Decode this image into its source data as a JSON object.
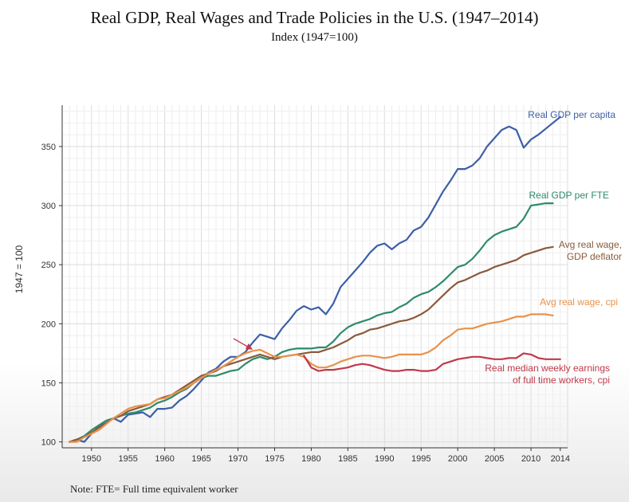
{
  "note": "Note: FTE= Full time equivalent worker",
  "chart_data": {
    "type": "line",
    "title": "Real GDP, Real Wages and Trade Policies in the U.S. (1947–2014)",
    "subtitle": "Index (1947=100)",
    "xlabel": "",
    "ylabel": "1947 = 100",
    "xlim": [
      1946,
      2015
    ],
    "ylim": [
      95,
      385
    ],
    "x_ticks": [
      1950,
      1955,
      1960,
      1965,
      1970,
      1975,
      1980,
      1985,
      1990,
      1995,
      2000,
      2005,
      2010,
      2014
    ],
    "y_ticks": [
      100,
      150,
      200,
      250,
      300,
      350
    ],
    "grid": true,
    "annotation": {
      "type": "arrow",
      "points_to": [
        1972,
        178
      ]
    },
    "series": [
      {
        "name": "Real GDP per capita",
        "label_lines": [
          "Real GDP per capita"
        ],
        "color": "#3d5fa8",
        "x": [
          1947,
          1948,
          1949,
          1950,
          1951,
          1952,
          1953,
          1954,
          1955,
          1956,
          1957,
          1958,
          1959,
          1960,
          1961,
          1962,
          1963,
          1964,
          1965,
          1966,
          1967,
          1968,
          1969,
          1970,
          1971,
          1972,
          1973,
          1974,
          1975,
          1976,
          1977,
          1978,
          1979,
          1980,
          1981,
          1982,
          1983,
          1984,
          1985,
          1986,
          1987,
          1988,
          1989,
          1990,
          1991,
          1992,
          1993,
          1994,
          1995,
          1996,
          1997,
          1998,
          1999,
          2000,
          2001,
          2002,
          2003,
          2004,
          2005,
          2006,
          2007,
          2008,
          2009,
          2010,
          2011,
          2012,
          2013,
          2014
        ],
        "y": [
          100,
          102,
          100,
          107,
          113,
          116,
          120,
          117,
          123,
          124,
          125,
          121,
          128,
          128,
          129,
          135,
          139,
          145,
          152,
          159,
          162,
          168,
          172,
          172,
          176,
          184,
          191,
          189,
          187,
          196,
          203,
          211,
          215,
          212,
          214,
          208,
          217,
          231,
          238,
          245,
          252,
          260,
          266,
          268,
          263,
          268,
          271,
          279,
          282,
          290,
          301,
          312,
          321,
          331,
          331,
          334,
          340,
          350,
          357,
          364,
          367,
          364,
          349,
          356,
          360,
          365,
          370,
          375
        ]
      },
      {
        "name": "Real GDP per FTE",
        "label_lines": [
          "Real GDP per FTE"
        ],
        "color": "#2e8b6a",
        "x": [
          1947,
          1948,
          1949,
          1950,
          1951,
          1952,
          1953,
          1954,
          1955,
          1956,
          1957,
          1958,
          1959,
          1960,
          1961,
          1962,
          1963,
          1964,
          1965,
          1966,
          1967,
          1968,
          1969,
          1970,
          1971,
          1972,
          1973,
          1974,
          1975,
          1976,
          1977,
          1978,
          1979,
          1980,
          1981,
          1982,
          1983,
          1984,
          1985,
          1986,
          1987,
          1988,
          1989,
          1990,
          1991,
          1992,
          1993,
          1994,
          1995,
          1996,
          1997,
          1998,
          1999,
          2000,
          2001,
          2002,
          2003,
          2004,
          2005,
          2006,
          2007,
          2008,
          2009,
          2010,
          2011,
          2012,
          2013
        ],
        "y": [
          100,
          102,
          105,
          110,
          114,
          118,
          120,
          122,
          124,
          125,
          127,
          129,
          133,
          135,
          138,
          142,
          145,
          150,
          154,
          156,
          156,
          158,
          160,
          161,
          166,
          170,
          172,
          170,
          172,
          176,
          178,
          179,
          179,
          179,
          180,
          180,
          185,
          192,
          197,
          200,
          202,
          204,
          207,
          209,
          210,
          214,
          217,
          222,
          225,
          227,
          231,
          236,
          242,
          248,
          250,
          255,
          262,
          270,
          275,
          278,
          280,
          282,
          289,
          300,
          301,
          302,
          302
        ]
      },
      {
        "name": "Avg real wage, GDP deflator",
        "label_lines": [
          "Avg real wage,",
          "GDP deflator"
        ],
        "color": "#8b5a3c",
        "x": [
          1947,
          1948,
          1949,
          1950,
          1951,
          1952,
          1953,
          1954,
          1955,
          1956,
          1957,
          1958,
          1959,
          1960,
          1961,
          1962,
          1963,
          1964,
          1965,
          1966,
          1967,
          1968,
          1969,
          1970,
          1971,
          1972,
          1973,
          1974,
          1975,
          1976,
          1977,
          1978,
          1979,
          1980,
          1981,
          1982,
          1983,
          1984,
          1985,
          1986,
          1987,
          1988,
          1989,
          1990,
          1991,
          1992,
          1993,
          1994,
          1995,
          1996,
          1997,
          1998,
          1999,
          2000,
          2001,
          2002,
          2003,
          2004,
          2005,
          2006,
          2007,
          2008,
          2009,
          2010,
          2011,
          2012,
          2013
        ],
        "y": [
          100,
          102,
          104,
          108,
          112,
          116,
          120,
          122,
          126,
          128,
          130,
          132,
          136,
          138,
          140,
          144,
          148,
          152,
          156,
          158,
          160,
          164,
          166,
          168,
          170,
          172,
          174,
          172,
          170,
          172,
          173,
          174,
          175,
          176,
          176,
          178,
          180,
          183,
          186,
          190,
          192,
          195,
          196,
          198,
          200,
          202,
          203,
          205,
          208,
          212,
          218,
          224,
          230,
          235,
          237,
          240,
          243,
          245,
          248,
          250,
          252,
          254,
          258,
          260,
          262,
          264,
          265
        ]
      },
      {
        "name": "Avg real wage, cpi",
        "label_lines": [
          "Avg real wage, cpi"
        ],
        "color": "#e8924a",
        "x": [
          1947,
          1948,
          1949,
          1950,
          1951,
          1952,
          1953,
          1954,
          1955,
          1956,
          1957,
          1958,
          1959,
          1960,
          1961,
          1962,
          1963,
          1964,
          1965,
          1966,
          1967,
          1968,
          1969,
          1970,
          1971,
          1972,
          1973,
          1974,
          1975,
          1976,
          1977,
          1978,
          1979,
          1980,
          1981,
          1982,
          1983,
          1984,
          1985,
          1986,
          1987,
          1988,
          1989,
          1990,
          1991,
          1992,
          1993,
          1994,
          1995,
          1996,
          1997,
          1998,
          1999,
          2000,
          2001,
          2002,
          2003,
          2004,
          2005,
          2006,
          2007,
          2008,
          2009,
          2010,
          2011,
          2012,
          2013
        ],
        "y": [
          100,
          100,
          104,
          107,
          110,
          115,
          120,
          124,
          128,
          130,
          131,
          132,
          136,
          137,
          140,
          143,
          146,
          150,
          154,
          158,
          161,
          164,
          168,
          172,
          175,
          177,
          178,
          175,
          172,
          172,
          173,
          174,
          172,
          166,
          163,
          163,
          165,
          168,
          170,
          172,
          173,
          173,
          172,
          171,
          172,
          174,
          174,
          174,
          174,
          176,
          180,
          186,
          190,
          195,
          196,
          196,
          198,
          200,
          201,
          202,
          204,
          206,
          206,
          208,
          208,
          208,
          207
        ]
      },
      {
        "name": "Real median weekly earnings of full time workers, cpi",
        "label_lines": [
          "Real median weekly earnings",
          "of full time workers, cpi"
        ],
        "color": "#c0394b",
        "x": [
          1979,
          1980,
          1981,
          1982,
          1983,
          1984,
          1985,
          1986,
          1987,
          1988,
          1989,
          1990,
          1991,
          1992,
          1993,
          1994,
          1995,
          1996,
          1997,
          1998,
          1999,
          2000,
          2001,
          2002,
          2003,
          2004,
          2005,
          2006,
          2007,
          2008,
          2009,
          2010,
          2011,
          2012,
          2013,
          2014
        ],
        "y": [
          173,
          163,
          160,
          161,
          161,
          162,
          163,
          165,
          166,
          165,
          163,
          161,
          160,
          160,
          161,
          161,
          160,
          160,
          161,
          166,
          168,
          170,
          171,
          172,
          172,
          171,
          170,
          170,
          171,
          171,
          175,
          174,
          171,
          170,
          170,
          170
        ]
      }
    ]
  }
}
